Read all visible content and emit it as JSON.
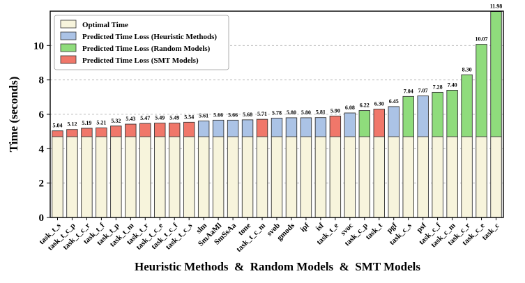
{
  "chart_data": {
    "type": "bar",
    "title": "",
    "xlabel": "Heuristic Methods  &  Random Models  &  SMT Models",
    "ylabel": "Time (seconds)",
    "ylim": [
      0,
      12
    ],
    "yticks": [
      0,
      2,
      4,
      6,
      8,
      10
    ],
    "grid": true,
    "legend_position": "top-left",
    "baseline_optimal": 4.7,
    "categories": [
      "task_t_s",
      "task_t_c_p",
      "task_t_c_r",
      "task_t_f",
      "task_t_p",
      "task_t_m",
      "task_t_r",
      "task_t_c_e",
      "task_t_c_f",
      "task_t_c_s",
      "slm",
      "SmAaMl",
      "SmSsAa",
      "tone",
      "task_t_c_m",
      "svob",
      "gmods",
      "ipf",
      "isf",
      "task_t_e",
      "svoc",
      "task_c_p",
      "task_t",
      "pgf",
      "task_c_s",
      "psf",
      "task_c_f",
      "task_c_m",
      "task_c_r",
      "task_c_e",
      "task_c"
    ],
    "values": [
      5.04,
      5.12,
      5.19,
      5.21,
      5.32,
      5.43,
      5.47,
      5.49,
      5.49,
      5.54,
      5.61,
      5.66,
      5.66,
      5.68,
      5.71,
      5.78,
      5.8,
      5.8,
      5.81,
      5.9,
      6.08,
      6.22,
      6.3,
      6.45,
      7.04,
      7.07,
      7.28,
      7.4,
      8.3,
      10.07,
      11.98
    ],
    "value_labels": [
      "5.04",
      "5.12",
      "5.19",
      "5.21",
      "5.32",
      "5.43",
      "5.47",
      "5.49",
      "5.49",
      "5.54",
      "5.61",
      "5.66",
      "5.66",
      "5.68",
      "5.71",
      "5.78",
      "5.80",
      "5.80",
      "5.81",
      "5.90",
      "6.08",
      "6.22",
      "6.30",
      "6.45",
      "7.04",
      "7.07",
      "7.28",
      "7.40",
      "8.30",
      "10.07",
      "11.98"
    ],
    "groups": [
      "smt",
      "smt",
      "smt",
      "smt",
      "smt",
      "smt",
      "smt",
      "smt",
      "smt",
      "smt",
      "heuristic",
      "heuristic",
      "heuristic",
      "heuristic",
      "smt",
      "heuristic",
      "heuristic",
      "heuristic",
      "heuristic",
      "smt",
      "heuristic",
      "random",
      "smt",
      "heuristic",
      "random",
      "heuristic",
      "random",
      "random",
      "random",
      "random",
      "random"
    ],
    "series": [
      {
        "key": "optimal",
        "name": "Optimal Time",
        "color": "#f7f4dc"
      },
      {
        "key": "heuristic",
        "name": "Predicted Time Loss (Heuristic Methods)",
        "color": "#abc3e6"
      },
      {
        "key": "random",
        "name": "Predicted Time Loss (Random Models)",
        "color": "#8fdc7c"
      },
      {
        "key": "smt",
        "name": "Predicted Time Loss (SMT Models)",
        "color": "#f0776a"
      }
    ]
  }
}
